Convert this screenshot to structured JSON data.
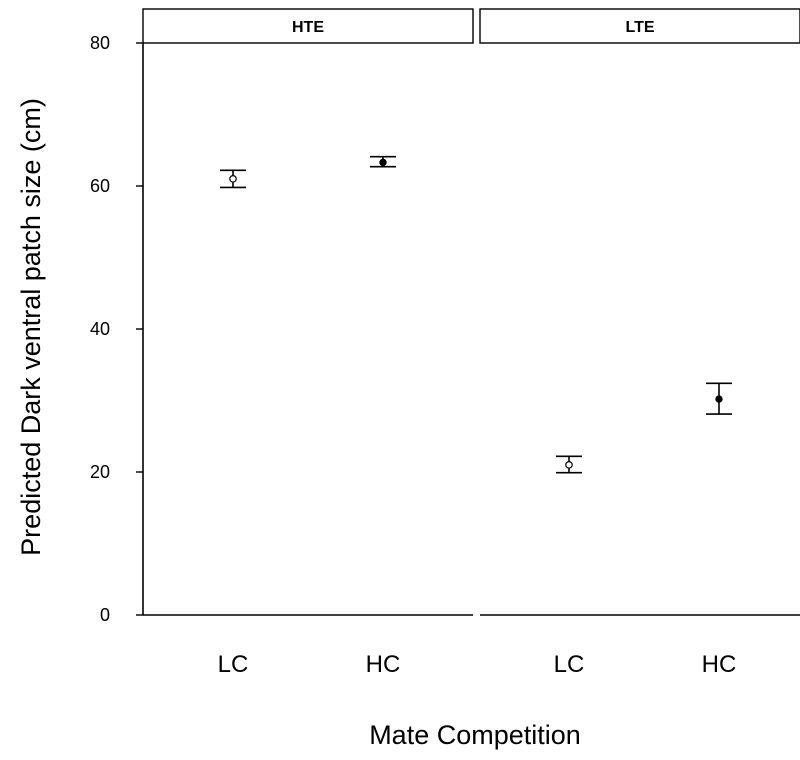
{
  "chart_data": {
    "type": "scatter",
    "title": "",
    "ylabel": "Predicted Dark ventral patch size (cm)",
    "xlabel": "Mate Competition",
    "ylim": [
      0,
      80
    ],
    "yticks": [
      0,
      20,
      40,
      60,
      80
    ],
    "grid": false,
    "panels": [
      {
        "strip": "HTE",
        "categories": [
          "LC",
          "HC"
        ],
        "points": [
          {
            "category": "LC",
            "value": 61.0,
            "lower": 59.8,
            "upper": 62.2,
            "marker": "open"
          },
          {
            "category": "HC",
            "value": 63.3,
            "lower": 62.7,
            "upper": 64.1,
            "marker": "filled"
          }
        ]
      },
      {
        "strip": "LTE",
        "categories": [
          "LC",
          "HC"
        ],
        "points": [
          {
            "category": "LC",
            "value": 21.0,
            "lower": 19.9,
            "upper": 22.2,
            "marker": "open"
          },
          {
            "category": "HC",
            "value": 30.2,
            "lower": 28.1,
            "upper": 32.4,
            "marker": "filled"
          }
        ]
      }
    ]
  }
}
